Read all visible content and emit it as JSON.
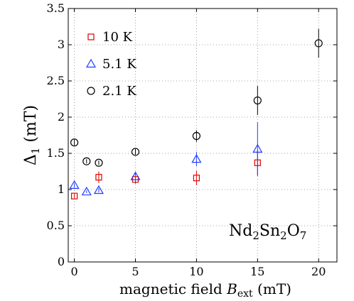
{
  "chart_data": {
    "type": "scatter",
    "title": "",
    "xlabel": "magnetic field B_ext (mT)",
    "xlabel_parts": {
      "main": "magnetic field ",
      "var": "B",
      "sub": "ext",
      "unit": " (mT)"
    },
    "ylabel": "Δ1 (mT)",
    "ylabel_parts": {
      "main": "Δ",
      "sub": "1",
      "unit": " (mT)"
    },
    "xlim": [
      -0.5,
      21.5
    ],
    "ylim": [
      0,
      3.5
    ],
    "xticks": [
      0,
      5,
      10,
      15,
      20
    ],
    "yticks": [
      0,
      0.5,
      1,
      1.5,
      2,
      2.5,
      3,
      3.5
    ],
    "ytick_labels": [
      "0",
      "0.5",
      "1",
      "1.5",
      "2",
      "2.5",
      "3",
      "3.5"
    ],
    "grid": true,
    "legend_position": "top-left",
    "annotation": {
      "parts": [
        [
          "Nd",
          ""
        ],
        [
          "2",
          "sub"
        ],
        [
          "Sn",
          ""
        ],
        [
          "2",
          "sub"
        ],
        [
          "O",
          ""
        ],
        [
          "7",
          "sub"
        ]
      ]
    },
    "series": [
      {
        "name": "10 K",
        "marker": "square",
        "color": "#e00000",
        "points": [
          {
            "x": 0,
            "y": 0.91,
            "err": 0.03
          },
          {
            "x": 2,
            "y": 1.17,
            "err": 0.08
          },
          {
            "x": 5,
            "y": 1.14,
            "err": 0.06
          },
          {
            "x": 10,
            "y": 1.16,
            "err": 0.1
          },
          {
            "x": 15,
            "y": 1.37,
            "err": 0.18
          }
        ]
      },
      {
        "name": "5.1 K",
        "marker": "triangle",
        "color": "#1f3fff",
        "points": [
          {
            "x": 0,
            "y": 1.06,
            "err": 0.03
          },
          {
            "x": 1,
            "y": 0.97,
            "err": 0.02
          },
          {
            "x": 2,
            "y": 0.99,
            "err": 0.03
          },
          {
            "x": 5,
            "y": 1.18,
            "err": 0.05
          },
          {
            "x": 10,
            "y": 1.42,
            "err": 0.1
          },
          {
            "x": 15,
            "y": 1.56,
            "err": 0.37
          }
        ]
      },
      {
        "name": "2.1 K",
        "marker": "circle",
        "color": "#000000",
        "points": [
          {
            "x": 0,
            "y": 1.65,
            "err": 0.04
          },
          {
            "x": 1,
            "y": 1.39,
            "err": 0.03
          },
          {
            "x": 2,
            "y": 1.37,
            "err": 0.03
          },
          {
            "x": 5,
            "y": 1.52,
            "err": 0.04
          },
          {
            "x": 10,
            "y": 1.74,
            "err": 0.08
          },
          {
            "x": 15,
            "y": 2.23,
            "err": 0.2
          },
          {
            "x": 20,
            "y": 3.02,
            "err": 0.2
          }
        ]
      }
    ]
  }
}
